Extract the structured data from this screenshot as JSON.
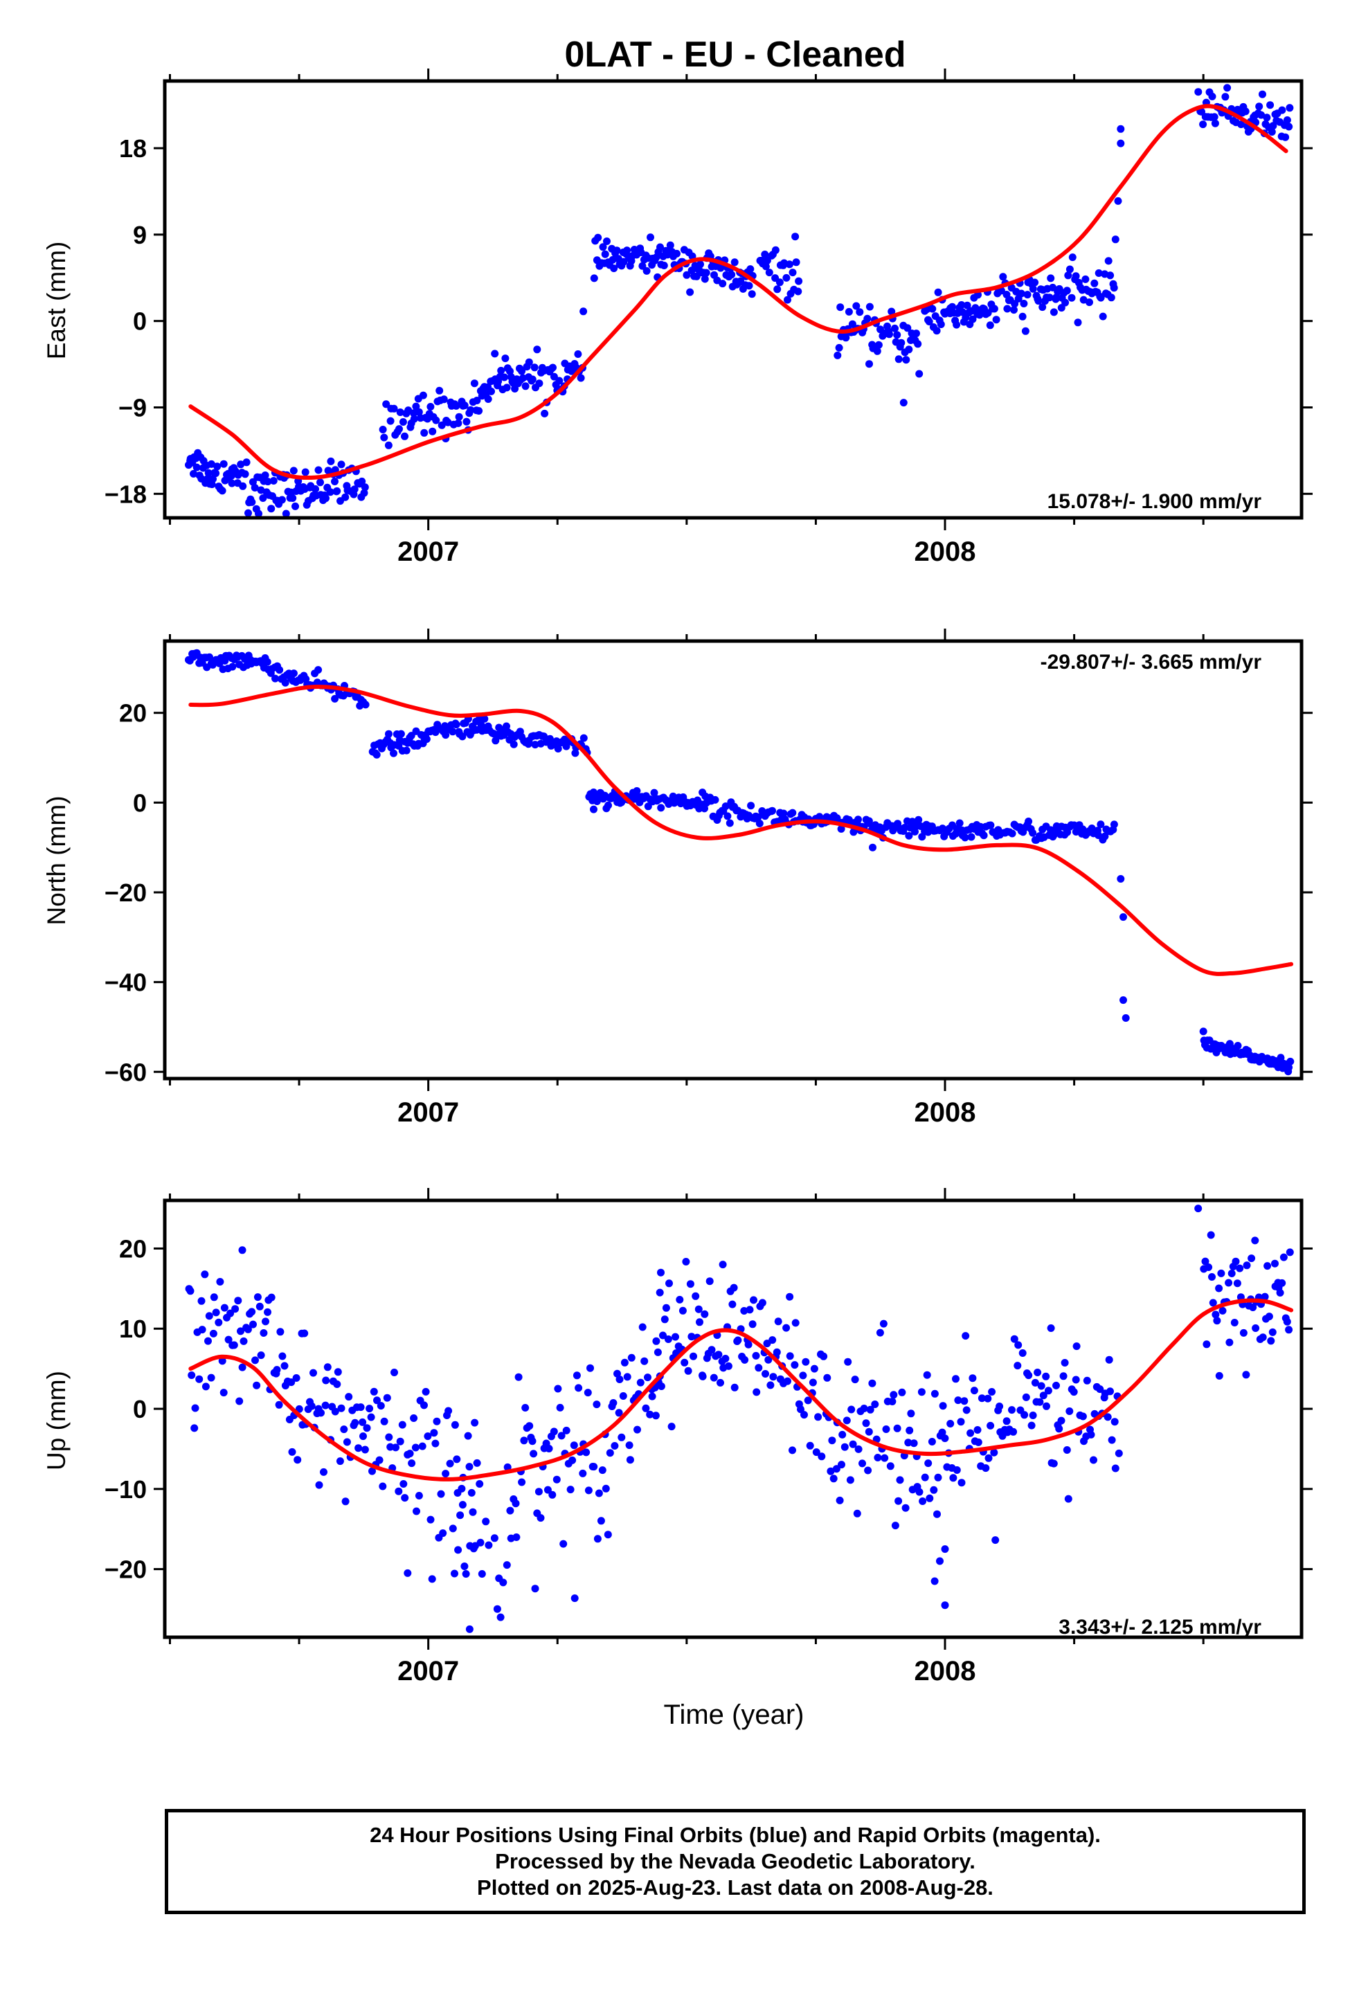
{
  "title": "0LAT  - EU - Cleaned",
  "xlabel": "Time (year)",
  "caption": {
    "line1": "24 Hour Positions Using Final Orbits (blue) and Rapid Orbits (magenta).",
    "line2": "Processed by the Nevada Geodetic Laboratory.",
    "line3": "Plotted on 2025-Aug-23. Last data on 2008-Aug-28."
  },
  "colors": {
    "points": "#0000ff",
    "fit": "#ff0000",
    "frame": "#000000"
  },
  "chart_data": [
    {
      "type": "scatter",
      "name": "east",
      "ylabel": "East (mm)",
      "rate_text": "15.078+/- 1.900 mm/yr",
      "xlim": [
        2006.49,
        2008.69
      ],
      "ylim": [
        -20.5,
        25
      ],
      "yticks": [
        -18,
        -9,
        0,
        9,
        18
      ],
      "xticks": [
        2007,
        2008
      ],
      "grid": false,
      "fit_curve": [
        [
          2006.54,
          -8.9
        ],
        [
          2006.62,
          -11.8
        ],
        [
          2006.7,
          -15.5
        ],
        [
          2006.78,
          -16.3
        ],
        [
          2006.88,
          -15.0
        ],
        [
          2007.0,
          -12.6
        ],
        [
          2007.1,
          -11.0
        ],
        [
          2007.18,
          -10.0
        ],
        [
          2007.25,
          -7.5
        ],
        [
          2007.32,
          -3.5
        ],
        [
          2007.4,
          1.2
        ],
        [
          2007.46,
          4.8
        ],
        [
          2007.52,
          6.4
        ],
        [
          2007.58,
          5.8
        ],
        [
          2007.64,
          3.8
        ],
        [
          2007.72,
          0.5
        ],
        [
          2007.8,
          -1.1
        ],
        [
          2007.88,
          0.2
        ],
        [
          2007.96,
          1.6
        ],
        [
          2008.02,
          2.8
        ],
        [
          2008.1,
          3.5
        ],
        [
          2008.18,
          5.2
        ],
        [
          2008.26,
          8.5
        ],
        [
          2008.34,
          14.0
        ],
        [
          2008.42,
          19.6
        ],
        [
          2008.48,
          22.0
        ],
        [
          2008.53,
          22.2
        ],
        [
          2008.6,
          20.2
        ],
        [
          2008.66,
          17.7
        ]
      ],
      "segments": [
        {
          "x0": 2006.535,
          "x1": 2006.59,
          "y0": -14.0,
          "y1": -16.5,
          "n": 24,
          "sd": 0.9
        },
        {
          "x0": 2006.59,
          "x1": 2006.65,
          "y0": -16.0,
          "y1": -15.5,
          "n": 20,
          "sd": 1.0
        },
        {
          "x0": 2006.65,
          "x1": 2006.78,
          "y0": -18.0,
          "y1": -17.5,
          "n": 50,
          "sd": 1.1
        },
        {
          "x0": 2006.78,
          "x1": 2006.88,
          "y0": -17.0,
          "y1": -17.5,
          "n": 35,
          "sd": 1.2
        },
        {
          "x0": 2006.91,
          "x1": 2006.96,
          "y0": -11.0,
          "y1": -10.0,
          "n": 14,
          "sd": 1.0
        },
        {
          "x0": 2006.96,
          "x1": 2007.1,
          "y0": -10.0,
          "y1": -9.0,
          "n": 45,
          "sd": 1.2
        },
        {
          "x0": 2007.1,
          "x1": 2007.18,
          "y0": -7.0,
          "y1": -5.0,
          "n": 30,
          "sd": 1.0
        },
        {
          "x0": 2007.18,
          "x1": 2007.3,
          "y0": -6.0,
          "y1": -5.5,
          "n": 40,
          "sd": 1.1
        },
        {
          "x0": 2007.32,
          "x1": 2007.5,
          "y0": 6.5,
          "y1": 6.5,
          "n": 65,
          "sd": 0.8
        },
        {
          "x0": 2007.5,
          "x1": 2007.63,
          "y0": 6.0,
          "y1": 4.0,
          "n": 50,
          "sd": 1.0
        },
        {
          "x0": 2007.64,
          "x1": 2007.72,
          "y0": 6.0,
          "y1": 4.0,
          "n": 25,
          "sd": 1.0
        },
        {
          "x0": 2007.79,
          "x1": 2007.95,
          "y0": -1.0,
          "y1": -2.0,
          "n": 55,
          "sd": 1.2
        },
        {
          "x0": 2007.96,
          "x1": 2008.1,
          "y0": 0.5,
          "y1": 1.5,
          "n": 50,
          "sd": 1.2
        },
        {
          "x0": 2008.1,
          "x1": 2008.33,
          "y0": 2.0,
          "y1": 3.5,
          "n": 80,
          "sd": 1.2
        },
        {
          "x0": 2008.49,
          "x1": 2008.67,
          "y0": 22.5,
          "y1": 20.5,
          "n": 60,
          "sd": 1.0
        }
      ],
      "outliers": [
        [
          2006.62,
          -16.9
        ],
        [
          2006.82,
          -15.5
        ],
        [
          2007.3,
          1.0
        ],
        [
          2007.92,
          -8.5
        ],
        [
          2007.95,
          -5.5
        ],
        [
          2008.33,
          8.5
        ],
        [
          2008.335,
          12.5
        ],
        [
          2008.34,
          18.5
        ],
        [
          2008.34,
          20.0
        ],
        [
          2007.71,
          8.8
        ]
      ]
    },
    {
      "type": "scatter",
      "name": "north",
      "ylabel": "North (mm)",
      "rate_text": "-29.807+/- 3.665 mm/yr",
      "xlim": [
        2006.49,
        2008.69
      ],
      "ylim": [
        -61.5,
        36
      ],
      "yticks": [
        -60,
        -40,
        -20,
        0,
        20
      ],
      "xticks": [
        2007,
        2008
      ],
      "grid": false,
      "fit_curve": [
        [
          2006.54,
          21.8
        ],
        [
          2006.6,
          22.0
        ],
        [
          2006.7,
          24.3
        ],
        [
          2006.78,
          25.8
        ],
        [
          2006.86,
          24.8
        ],
        [
          2006.96,
          21.5
        ],
        [
          2007.04,
          19.5
        ],
        [
          2007.1,
          19.6
        ],
        [
          2007.18,
          20.4
        ],
        [
          2007.24,
          18.0
        ],
        [
          2007.3,
          11.5
        ],
        [
          2007.36,
          3.5
        ],
        [
          2007.44,
          -4.5
        ],
        [
          2007.52,
          -7.8
        ],
        [
          2007.6,
          -7.2
        ],
        [
          2007.68,
          -5.0
        ],
        [
          2007.76,
          -4.2
        ],
        [
          2007.84,
          -6.0
        ],
        [
          2007.92,
          -9.5
        ],
        [
          2008.0,
          -10.5
        ],
        [
          2008.1,
          -9.5
        ],
        [
          2008.18,
          -10.2
        ],
        [
          2008.26,
          -15.5
        ],
        [
          2008.34,
          -23.0
        ],
        [
          2008.42,
          -31.5
        ],
        [
          2008.5,
          -37.5
        ],
        [
          2008.56,
          -38.0
        ],
        [
          2008.62,
          -37.0
        ],
        [
          2008.67,
          -36.0
        ]
      ],
      "segments": [
        {
          "x0": 2006.535,
          "x1": 2006.7,
          "y0": 32.0,
          "y1": 31.0,
          "n": 50,
          "sd": 0.9
        },
        {
          "x0": 2006.7,
          "x1": 2006.88,
          "y0": 29.0,
          "y1": 23.0,
          "n": 50,
          "sd": 1.1
        },
        {
          "x0": 2006.89,
          "x1": 2007.0,
          "y0": 12.5,
          "y1": 14.0,
          "n": 35,
          "sd": 1.0
        },
        {
          "x0": 2007.0,
          "x1": 2007.1,
          "y0": 15.5,
          "y1": 17.5,
          "n": 30,
          "sd": 1.0
        },
        {
          "x0": 2007.1,
          "x1": 2007.31,
          "y0": 16.0,
          "y1": 12.5,
          "n": 60,
          "sd": 1.1
        },
        {
          "x0": 2007.31,
          "x1": 2007.55,
          "y0": 1.5,
          "y1": 0.0,
          "n": 80,
          "sd": 0.9
        },
        {
          "x0": 2007.55,
          "x1": 2007.88,
          "y0": -1.5,
          "y1": -6.0,
          "n": 95,
          "sd": 1.0
        },
        {
          "x0": 2007.88,
          "x1": 2008.33,
          "y0": -6.0,
          "y1": -6.5,
          "n": 120,
          "sd": 1.0
        },
        {
          "x0": 2008.5,
          "x1": 2008.67,
          "y0": -54.0,
          "y1": -58.5,
          "n": 65,
          "sd": 0.7
        }
      ],
      "outliers": [
        [
          2007.32,
          -1.5
        ],
        [
          2008.34,
          -17.0
        ],
        [
          2008.345,
          -25.5
        ],
        [
          2008.345,
          -44.0
        ],
        [
          2008.35,
          -48.0
        ],
        [
          2008.5,
          -51.0
        ],
        [
          2007.86,
          -10.0
        ]
      ]
    },
    {
      "type": "scatter",
      "name": "up",
      "ylabel": "Up (mm)",
      "rate_text": "3.343+/- 2.125 mm/yr",
      "xlim": [
        2006.49,
        2008.69
      ],
      "ylim": [
        -28.5,
        26
      ],
      "yticks": [
        -20,
        -10,
        0,
        10,
        20
      ],
      "xticks": [
        2007,
        2008
      ],
      "grid": false,
      "fit_curve": [
        [
          2006.54,
          5.0
        ],
        [
          2006.6,
          6.5
        ],
        [
          2006.66,
          5.2
        ],
        [
          2006.72,
          1.0
        ],
        [
          2006.8,
          -3.5
        ],
        [
          2006.88,
          -6.8
        ],
        [
          2006.96,
          -8.3
        ],
        [
          2007.04,
          -8.8
        ],
        [
          2007.12,
          -8.2
        ],
        [
          2007.2,
          -7.2
        ],
        [
          2007.28,
          -5.5
        ],
        [
          2007.36,
          -2.0
        ],
        [
          2007.44,
          3.5
        ],
        [
          2007.52,
          8.5
        ],
        [
          2007.58,
          9.8
        ],
        [
          2007.64,
          8.0
        ],
        [
          2007.72,
          3.0
        ],
        [
          2007.8,
          -2.0
        ],
        [
          2007.88,
          -4.7
        ],
        [
          2007.96,
          -5.6
        ],
        [
          2008.04,
          -5.3
        ],
        [
          2008.12,
          -4.6
        ],
        [
          2008.2,
          -3.8
        ],
        [
          2008.28,
          -1.8
        ],
        [
          2008.36,
          2.5
        ],
        [
          2008.44,
          8.0
        ],
        [
          2008.5,
          11.8
        ],
        [
          2008.56,
          13.3
        ],
        [
          2008.62,
          13.4
        ],
        [
          2008.67,
          12.3
        ]
      ],
      "segments": [
        {
          "x0": 2006.535,
          "x1": 2006.72,
          "y0": 8.0,
          "y1": 9.0,
          "n": 55,
          "sd": 4.0
        },
        {
          "x0": 2006.72,
          "x1": 2006.9,
          "y0": 2.0,
          "y1": -4.0,
          "n": 55,
          "sd": 4.0
        },
        {
          "x0": 2006.9,
          "x1": 2007.1,
          "y0": -6.0,
          "y1": -10.0,
          "n": 55,
          "sd": 5.0
        },
        {
          "x0": 2007.05,
          "x1": 2007.15,
          "y0": -17.0,
          "y1": -20.0,
          "n": 15,
          "sd": 4.0
        },
        {
          "x0": 2007.15,
          "x1": 2007.35,
          "y0": -8.0,
          "y1": -4.0,
          "n": 60,
          "sd": 5.5
        },
        {
          "x0": 2007.35,
          "x1": 2007.45,
          "y0": 0.0,
          "y1": 4.0,
          "n": 30,
          "sd": 4.0
        },
        {
          "x0": 2007.44,
          "x1": 2007.7,
          "y0": 10.0,
          "y1": 6.0,
          "n": 80,
          "sd": 4.0
        },
        {
          "x0": 2007.7,
          "x1": 2007.97,
          "y0": 1.0,
          "y1": -4.0,
          "n": 80,
          "sd": 5.0
        },
        {
          "x0": 2007.97,
          "x1": 2008.1,
          "y0": -5.0,
          "y1": -4.0,
          "n": 40,
          "sd": 5.0
        },
        {
          "x0": 2008.1,
          "x1": 2008.34,
          "y0": 0.0,
          "y1": -2.0,
          "n": 70,
          "sd": 5.0
        },
        {
          "x0": 2008.5,
          "x1": 2008.67,
          "y0": 14.0,
          "y1": 13.0,
          "n": 55,
          "sd": 4.0
        }
      ],
      "outliers": [
        [
          2006.96,
          -20.5
        ],
        [
          2007.08,
          -27.5
        ],
        [
          2007.14,
          -26.0
        ],
        [
          2007.98,
          -21.5
        ],
        [
          2007.99,
          -19.0
        ],
        [
          2008.0,
          -17.5
        ],
        [
          2008.0,
          -24.5
        ],
        [
          2008.49,
          25.0
        ],
        [
          2008.6,
          21.0
        ],
        [
          2006.64,
          19.8
        ],
        [
          2007.57,
          18.0
        ],
        [
          2007.45,
          17.0
        ]
      ]
    }
  ]
}
